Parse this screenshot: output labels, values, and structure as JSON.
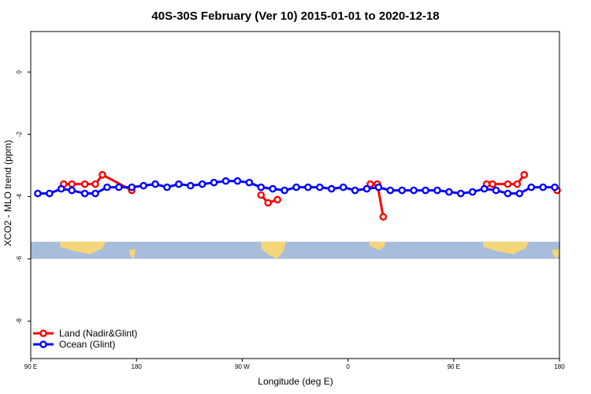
{
  "chart_data": {
    "type": "line",
    "title": "40S-30S February (Ver 10)   2015-01-01 to 2020-12-18",
    "xlabel": "Longitude (deg E)",
    "ylabel": "XCO2 - MLO trend (ppm)",
    "x_ticks": [
      {
        "value": 90,
        "label": "90 E"
      },
      {
        "value": 180,
        "label": "180"
      },
      {
        "value": 270,
        "label": "90 W"
      },
      {
        "value": 360,
        "label": "0"
      },
      {
        "value": 450,
        "label": "90 E"
      },
      {
        "value": 540,
        "label": "180"
      }
    ],
    "y_ticks": [
      {
        "value": 0,
        "label": "0"
      },
      {
        "value": -2,
        "label": "-2"
      },
      {
        "value": -4,
        "label": "-4"
      },
      {
        "value": -6,
        "label": "-6"
      },
      {
        "value": -8,
        "label": "-8"
      }
    ],
    "xlim": [
      90,
      540
    ],
    "ylim": [
      -9.2,
      1.3
    ],
    "grid": false,
    "legend_position": "bottom-left",
    "map_strip": {
      "y_top": -5.45,
      "y_bottom": -6.0,
      "ocean_color": "#a8bcdb",
      "land_color": "#f4d67a",
      "land_masses": [
        {
          "name": "Australia",
          "x": [
            115,
            154
          ],
          "y_top": -5.45,
          "y_bottom": -5.85
        },
        {
          "name": "New Zealand",
          "x": [
            174,
            179
          ],
          "y_top": -5.7,
          "y_bottom": -6.0
        },
        {
          "name": "South America",
          "x": [
            286,
            307
          ],
          "y_top": -5.45,
          "y_bottom": -6.0
        },
        {
          "name": "Southern Africa",
          "x": [
            378,
            392
          ],
          "y_top": -5.45,
          "y_bottom": -5.72
        },
        {
          "name": "Australia",
          "x": [
            475,
            514
          ],
          "y_top": -5.45,
          "y_bottom": -5.85
        },
        {
          "name": "New Zealand",
          "x": [
            534,
            540
          ],
          "y_top": -5.7,
          "y_bottom": -6.0
        }
      ]
    },
    "series": [
      {
        "name": "Land (Nadir&Glint)",
        "color": "#ff0000",
        "segments": [
          [
            [
              118,
              -3.6
            ],
            [
              125,
              -3.6
            ],
            [
              136,
              -3.6
            ],
            [
              145,
              -3.6
            ],
            [
              151,
              -3.3
            ],
            [
              176,
              -3.8
            ]
          ],
          [
            [
              286,
              -3.95
            ],
            [
              292,
              -4.2
            ],
            [
              300,
              -4.1
            ]
          ],
          [
            [
              379,
              -3.6
            ],
            [
              385,
              -3.6
            ],
            [
              390,
              -4.65
            ]
          ],
          [
            [
              478,
              -3.6
            ],
            [
              483,
              -3.6
            ],
            [
              496,
              -3.6
            ],
            [
              504,
              -3.6
            ],
            [
              510,
              -3.3
            ]
          ],
          [
            [
              538,
              -3.8
            ]
          ]
        ]
      },
      {
        "name": "Ocean (Glint)",
        "color": "#0000ff",
        "segments": [
          [
            [
              96,
              -3.9
            ],
            [
              106,
              -3.9
            ],
            [
              116,
              -3.75
            ],
            [
              125,
              -3.8
            ],
            [
              136,
              -3.9
            ],
            [
              145,
              -3.9
            ],
            [
              155,
              -3.7
            ],
            [
              165,
              -3.7
            ],
            [
              176,
              -3.7
            ],
            [
              186,
              -3.65
            ],
            [
              196,
              -3.6
            ],
            [
              206,
              -3.7
            ],
            [
              216,
              -3.6
            ],
            [
              226,
              -3.65
            ],
            [
              236,
              -3.6
            ],
            [
              246,
              -3.55
            ],
            [
              256,
              -3.5
            ],
            [
              266,
              -3.5
            ],
            [
              276,
              -3.55
            ],
            [
              286,
              -3.7
            ],
            [
              296,
              -3.75
            ],
            [
              306,
              -3.8
            ],
            [
              316,
              -3.7
            ],
            [
              326,
              -3.7
            ],
            [
              336,
              -3.7
            ],
            [
              346,
              -3.75
            ],
            [
              356,
              -3.7
            ],
            [
              366,
              -3.8
            ],
            [
              376,
              -3.75
            ],
            [
              386,
              -3.7
            ],
            [
              396,
              -3.8
            ],
            [
              406,
              -3.8
            ],
            [
              416,
              -3.8
            ],
            [
              426,
              -3.8
            ],
            [
              436,
              -3.8
            ],
            [
              446,
              -3.85
            ],
            [
              456,
              -3.9
            ],
            [
              466,
              -3.85
            ],
            [
              476,
              -3.75
            ],
            [
              486,
              -3.8
            ],
            [
              496,
              -3.9
            ],
            [
              506,
              -3.9
            ],
            [
              516,
              -3.7
            ],
            [
              526,
              -3.7
            ],
            [
              536,
              -3.7
            ]
          ]
        ]
      }
    ]
  }
}
